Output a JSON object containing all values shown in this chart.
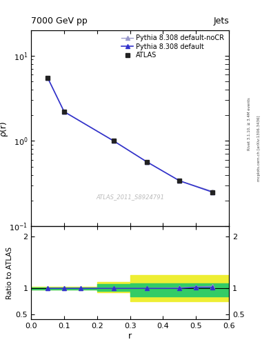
{
  "title": "7000 GeV pp",
  "title_right": "Jets",
  "ylabel_main": "ρ(r)",
  "ylabel_ratio": "Ratio to ATLAS",
  "xlabel": "r",
  "watermark": "ATLAS_2011_S8924791",
  "rivet_label": "Rivet 3.1.10, ≥ 3.4M events",
  "arxiv_label": "mcplots.cern.ch [arXiv:1306.3436]",
  "x_main": [
    0.05,
    0.1,
    0.25,
    0.35,
    0.45,
    0.55
  ],
  "y_atlas": [
    5.5,
    2.2,
    1.0,
    0.57,
    0.34,
    0.25
  ],
  "y_pythia_default": [
    5.5,
    2.2,
    1.0,
    0.57,
    0.34,
    0.25
  ],
  "y_pythia_noCR": [
    5.5,
    2.2,
    1.0,
    0.57,
    0.34,
    0.255
  ],
  "x_ratio": [
    0.05,
    0.1,
    0.15,
    0.25,
    0.35,
    0.45,
    0.5,
    0.55
  ],
  "ratio_default": [
    1.0,
    1.0,
    1.0,
    1.0,
    1.0,
    1.0,
    1.02,
    1.02
  ],
  "ratio_noCR": [
    1.0,
    1.0,
    1.0,
    1.0,
    1.0,
    1.01,
    1.03,
    1.04
  ],
  "band_edges": [
    0.0,
    0.1,
    0.2,
    0.3,
    0.4,
    0.5,
    0.6
  ],
  "band_yellow_lo": [
    0.97,
    0.97,
    0.92,
    0.75,
    0.75,
    0.75,
    0.75
  ],
  "band_yellow_hi": [
    1.03,
    1.03,
    1.12,
    1.25,
    1.25,
    1.25,
    1.25
  ],
  "band_green_lo": [
    0.98,
    0.98,
    0.95,
    0.85,
    0.85,
    0.85,
    0.85
  ],
  "band_green_hi": [
    1.02,
    1.02,
    1.08,
    1.1,
    1.1,
    1.1,
    1.1
  ],
  "color_atlas": "#222222",
  "color_default": "#3333cc",
  "color_noCR": "#9999cc",
  "color_green": "#33cc66",
  "color_yellow": "#eeee33",
  "xlim": [
    0.0,
    0.6
  ],
  "ylim_main_lo": 0.1,
  "ylim_main_hi": 20.0,
  "ylim_ratio_lo": 0.4,
  "ylim_ratio_hi": 2.2
}
